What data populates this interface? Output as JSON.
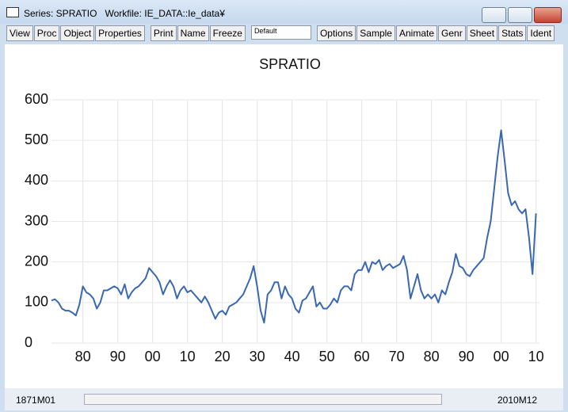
{
  "window": {
    "title": "Series: SPRATIO   Workfile: IE_DATA::Ie_data¥",
    "toolbar": [
      "View",
      "Proc",
      "Object",
      "Properties",
      "Print",
      "Name",
      "Freeze"
    ],
    "dropdown": "Default",
    "toolbar2": [
      "Options",
      "Sample",
      "Animate",
      "Genr",
      "Sheet",
      "Stats",
      "Ident"
    ],
    "sample_start": "1871M01",
    "sample_end": "2010M12"
  },
  "chart_data": {
    "type": "line",
    "title": "SPRATIO",
    "color": "#3a68b0",
    "grid": true,
    "x": [
      1871,
      1872,
      1873,
      1874,
      1875,
      1876,
      1877,
      1878,
      1879,
      1880,
      1881,
      1882,
      1883,
      1884,
      1885,
      1886,
      1887,
      1888,
      1889,
      1890,
      1891,
      1892,
      1893,
      1894,
      1895,
      1896,
      1897,
      1898,
      1899,
      1900,
      1901,
      1902,
      1903,
      1904,
      1905,
      1906,
      1907,
      1908,
      1909,
      1910,
      1911,
      1912,
      1913,
      1914,
      1915,
      1916,
      1917,
      1918,
      1919,
      1920,
      1921,
      1922,
      1923,
      1924,
      1925,
      1926,
      1927,
      1928,
      1929,
      1930,
      1931,
      1932,
      1933,
      1934,
      1935,
      1936,
      1937,
      1938,
      1939,
      1940,
      1941,
      1942,
      1943,
      1944,
      1945,
      1946,
      1947,
      1948,
      1949,
      1950,
      1951,
      1952,
      1953,
      1954,
      1955,
      1956,
      1957,
      1958,
      1959,
      1960,
      1961,
      1962,
      1963,
      1964,
      1965,
      1966,
      1967,
      1968,
      1969,
      1970,
      1971,
      1972,
      1973,
      1974,
      1975,
      1976,
      1977,
      1978,
      1979,
      1980,
      1981,
      1982,
      1983,
      1984,
      1985,
      1986,
      1987,
      1988,
      1989,
      1990,
      1991,
      1992,
      1993,
      1994,
      1995,
      1996,
      1997,
      1998,
      1999,
      2000,
      2001,
      2002,
      2003,
      2004,
      2005,
      2006,
      2007,
      2008,
      2009,
      2010
    ],
    "values": [
      105,
      108,
      100,
      85,
      80,
      80,
      75,
      68,
      95,
      140,
      125,
      120,
      110,
      85,
      100,
      130,
      130,
      135,
      140,
      135,
      120,
      145,
      110,
      125,
      135,
      140,
      150,
      160,
      185,
      175,
      165,
      150,
      120,
      140,
      155,
      140,
      110,
      130,
      140,
      125,
      130,
      120,
      110,
      100,
      115,
      100,
      80,
      60,
      75,
      80,
      70,
      90,
      95,
      100,
      110,
      120,
      140,
      160,
      190,
      140,
      80,
      50,
      120,
      130,
      150,
      150,
      110,
      140,
      120,
      110,
      85,
      75,
      105,
      110,
      125,
      140,
      90,
      100,
      85,
      85,
      95,
      110,
      100,
      130,
      140,
      140,
      130,
      170,
      180,
      180,
      200,
      175,
      200,
      195,
      205,
      180,
      190,
      195,
      185,
      190,
      195,
      215,
      180,
      110,
      140,
      170,
      130,
      110,
      120,
      110,
      120,
      100,
      130,
      120,
      150,
      175,
      220,
      190,
      185,
      170,
      165,
      180,
      190,
      200,
      210,
      260,
      300,
      380,
      460,
      525,
      450,
      370,
      340,
      350,
      330,
      320,
      330,
      260,
      170,
      320
    ],
    "xlim": [
      1871,
      2011
    ],
    "ylim": [
      0,
      600
    ],
    "xticks": [
      {
        "value": 1880,
        "label": "80"
      },
      {
        "value": 1890,
        "label": "90"
      },
      {
        "value": 1900,
        "label": "00"
      },
      {
        "value": 1910,
        "label": "10"
      },
      {
        "value": 1920,
        "label": "20"
      },
      {
        "value": 1930,
        "label": "30"
      },
      {
        "value": 1940,
        "label": "40"
      },
      {
        "value": 1950,
        "label": "50"
      },
      {
        "value": 1960,
        "label": "60"
      },
      {
        "value": 1970,
        "label": "70"
      },
      {
        "value": 1980,
        "label": "80"
      },
      {
        "value": 1990,
        "label": "90"
      },
      {
        "value": 2000,
        "label": "00"
      },
      {
        "value": 2010,
        "label": "10"
      }
    ],
    "yticks": [
      0,
      100,
      200,
      300,
      400,
      500,
      600
    ]
  }
}
